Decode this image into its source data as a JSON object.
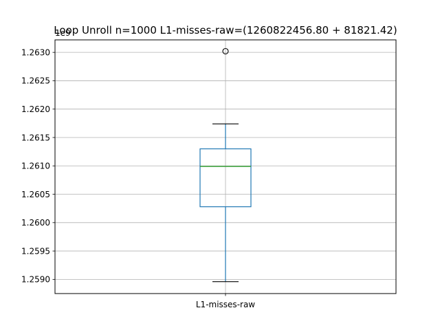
{
  "chart_data": {
    "type": "box",
    "title": "Loop Unroll n=1000  L1-misses-raw=(1260822456.80 + 81821.42)",
    "offset_label": "1e9",
    "categories": [
      "L1-misses-raw"
    ],
    "ylim": [
      1.25875,
      1.26322
    ],
    "yticks": [
      1.259,
      1.2595,
      1.26,
      1.2605,
      1.261,
      1.2615,
      1.262,
      1.2625,
      1.263
    ],
    "ytick_labels": [
      "1.2590",
      "1.2595",
      "1.2600",
      "1.2605",
      "1.2610",
      "1.2615",
      "1.2620",
      "1.2625",
      "1.2630"
    ],
    "grid": true,
    "boxes": [
      {
        "name": "L1-misses-raw",
        "whisker_low": 1.25896,
        "q1": 1.26028,
        "median": 1.26099,
        "q3": 1.2613,
        "whisker_high": 1.26174,
        "fliers": [
          1.26302
        ]
      }
    ],
    "colors": {
      "box": "#1f77b4",
      "median": "#2ca02c",
      "whisker": "#1f77b4",
      "cap": "#000000",
      "grid": "#b0b0b0",
      "flier_edge": "#000000"
    }
  }
}
